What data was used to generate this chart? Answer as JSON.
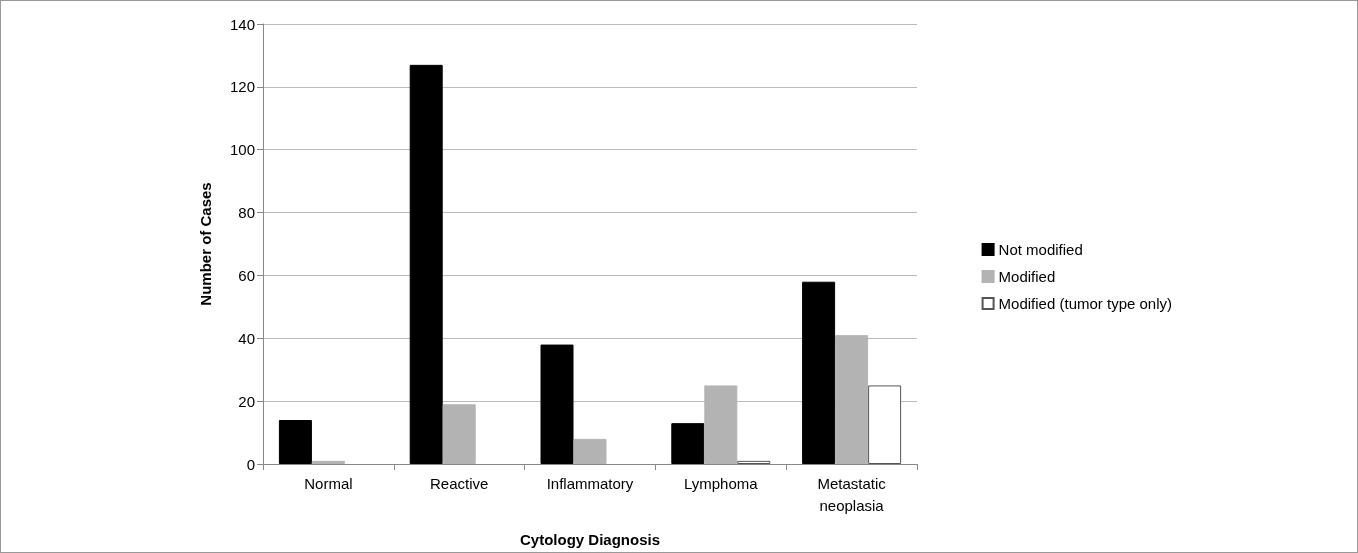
{
  "chart_data": {
    "type": "bar",
    "xlabel": "Cytology Diagnosis",
    "ylabel": "Number of Cases",
    "categories": [
      "Normal",
      "Reactive",
      "Inflammatory",
      "Lymphoma",
      "Metastatic\nneoplasia"
    ],
    "series": [
      {
        "name": "Not modified",
        "color": "#000000",
        "values": [
          14,
          127,
          38,
          13,
          58
        ]
      },
      {
        "name": "Modified",
        "color": "#b3b3b3",
        "values": [
          1,
          19,
          8,
          25,
          41
        ]
      },
      {
        "name": "Modified (tumor type only)",
        "color": "#ffffff",
        "values": [
          0,
          0,
          0,
          1,
          25
        ]
      }
    ],
    "ylim": [
      0,
      140
    ],
    "yticks": [
      0,
      20,
      40,
      60,
      80,
      100,
      120,
      140
    ],
    "grid": "y",
    "legend": "right"
  }
}
